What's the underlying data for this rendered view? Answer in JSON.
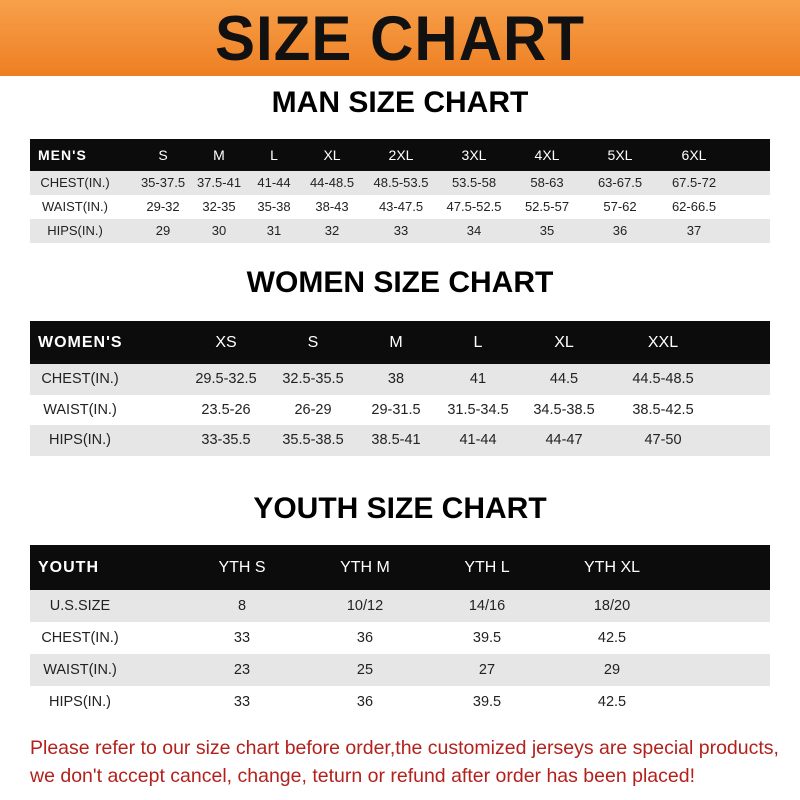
{
  "title": "SIZE CHART",
  "colors": {
    "banner": "#ef8427",
    "header_row": "#0c0c0c",
    "stripe": "#e6e6e6",
    "footer_text": "#b3211c"
  },
  "men": {
    "heading": "MAN SIZE CHART",
    "columns": [
      "MEN'S",
      "S",
      "M",
      "L",
      "XL",
      "2XL",
      "3XL",
      "4XL",
      "5XL",
      "6XL"
    ],
    "rows": [
      [
        "CHEST(IN.)",
        "35-37.5",
        "37.5-41",
        "41-44",
        "44-48.5",
        "48.5-53.5",
        "53.5-58",
        "58-63",
        "63-67.5",
        "67.5-72"
      ],
      [
        "WAIST(IN.)",
        "29-32",
        "32-35",
        "35-38",
        "38-43",
        "43-47.5",
        "47.5-52.5",
        "52.5-57",
        "57-62",
        "62-66.5"
      ],
      [
        "HIPS(IN.)",
        "29",
        "30",
        "31",
        "32",
        "33",
        "34",
        "35",
        "36",
        "37"
      ]
    ]
  },
  "women": {
    "heading": "WOMEN SIZE CHART",
    "columns": [
      "WOMEN'S",
      "XS",
      "S",
      "M",
      "L",
      "XL",
      "XXL"
    ],
    "rows": [
      [
        "CHEST(IN.)",
        "29.5-32.5",
        "32.5-35.5",
        "38",
        "41",
        "44.5",
        "44.5-48.5"
      ],
      [
        "WAIST(IN.)",
        "23.5-26",
        "26-29",
        "29-31.5",
        "31.5-34.5",
        "34.5-38.5",
        "38.5-42.5"
      ],
      [
        "HIPS(IN.)",
        "33-35.5",
        "35.5-38.5",
        "38.5-41",
        "41-44",
        "44-47",
        "47-50"
      ]
    ]
  },
  "youth": {
    "heading": "YOUTH SIZE CHART",
    "columns": [
      "YOUTH",
      "YTH S",
      "YTH M",
      "YTH L",
      "YTH XL"
    ],
    "rows": [
      [
        "U.S.SIZE",
        "8",
        "10/12",
        "14/16",
        "18/20"
      ],
      [
        "CHEST(IN.)",
        "33",
        "36",
        "39.5",
        "42.5"
      ],
      [
        "WAIST(IN.)",
        "23",
        "25",
        "27",
        "29"
      ],
      [
        "HIPS(IN.)",
        "33",
        "36",
        "39.5",
        "42.5"
      ]
    ]
  },
  "footer": {
    "line1": "Please refer to our size chart before order,the customized jerseys are special products,",
    "line2": "we don't accept cancel, change, teturn or refund after order has been placed!"
  }
}
